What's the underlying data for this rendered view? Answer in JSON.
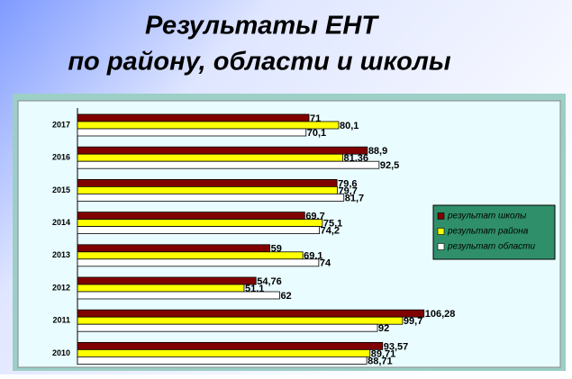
{
  "chart_data": {
    "type": "hbar",
    "title": "Результаты ЕНТ",
    "subtitle": "по району, области и школы",
    "categories": [
      "2017",
      "2016",
      "2015",
      "2014",
      "2013",
      "2012",
      "2011",
      "2010"
    ],
    "series": [
      {
        "name": "результат школы",
        "color": "#800000",
        "values": [
          71,
          88.9,
          79.6,
          69.7,
          59,
          54.76,
          106.28,
          93.57
        ],
        "value_labels": [
          "71",
          "88,9",
          "79,6",
          "69,7",
          "59",
          "54,76",
          "106,28",
          "93,57"
        ]
      },
      {
        "name": "результат района",
        "color": "#ffff00",
        "values": [
          80.1,
          81.36,
          79.7,
          75.1,
          69.1,
          51.1,
          99.7,
          89.71
        ],
        "value_labels": [
          "80,1",
          "81,36",
          "79,7",
          "75,1",
          "69,1",
          "51,1",
          "99,7",
          "89,71"
        ]
      },
      {
        "name": "результат области",
        "color": "#ffffff",
        "values": [
          70.1,
          92.5,
          81.7,
          74.2,
          74,
          62,
          92,
          88.71
        ],
        "value_labels": [
          "70,1",
          "92,5",
          "81,7",
          "74,2",
          "74",
          "62",
          "92",
          "88,71"
        ]
      }
    ],
    "legend": "right"
  }
}
